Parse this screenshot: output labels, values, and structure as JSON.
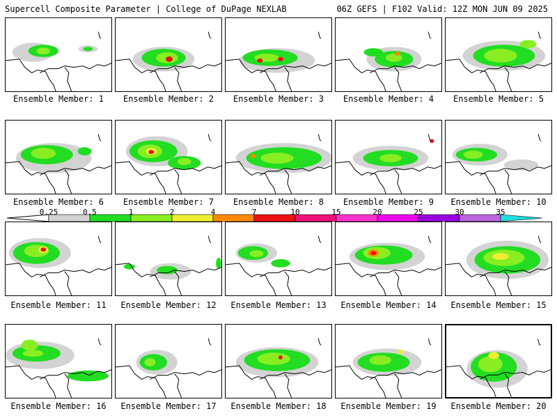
{
  "header": {
    "left_title": "Supercell Composite Parameter | College of DuPage NEXLAB",
    "right_title": "06Z GEFS | F102 Valid: 12Z MON JUN 09 2025"
  },
  "members": [
    {
      "label": "Ensemble Member: 1"
    },
    {
      "label": "Ensemble Member: 2"
    },
    {
      "label": "Ensemble Member: 3"
    },
    {
      "label": "Ensemble Member: 4"
    },
    {
      "label": "Ensemble Member: 5"
    },
    {
      "label": "Ensemble Member: 6"
    },
    {
      "label": "Ensemble Member: 7"
    },
    {
      "label": "Ensemble Member: 8"
    },
    {
      "label": "Ensemble Member: 9"
    },
    {
      "label": "Ensemble Member: 10"
    },
    {
      "label": "Ensemble Member: 11"
    },
    {
      "label": "Ensemble Member: 12"
    },
    {
      "label": "Ensemble Member: 13"
    },
    {
      "label": "Ensemble Member: 14"
    },
    {
      "label": "Ensemble Member: 15"
    },
    {
      "label": "Ensemble Member: 16"
    },
    {
      "label": "Ensemble Member: 17"
    },
    {
      "label": "Ensemble Member: 18"
    },
    {
      "label": "Ensemble Member: 19"
    },
    {
      "label": "Ensemble Member: 20",
      "selected": true
    }
  ],
  "colorbar": {
    "thresholds": [
      "0.25",
      "0.5",
      "1",
      "2",
      "4",
      "7",
      "10",
      "15",
      "20",
      "25",
      "30",
      "35"
    ],
    "colors": [
      "#d3d3d3",
      "#22dd22",
      "#88ee22",
      "#eeee33",
      "#ff8800",
      "#ee1111",
      "#ee1177",
      "#ff33cc",
      "#ee00ee",
      "#9900dd",
      "#bb66dd",
      "#22dddd"
    ]
  }
}
